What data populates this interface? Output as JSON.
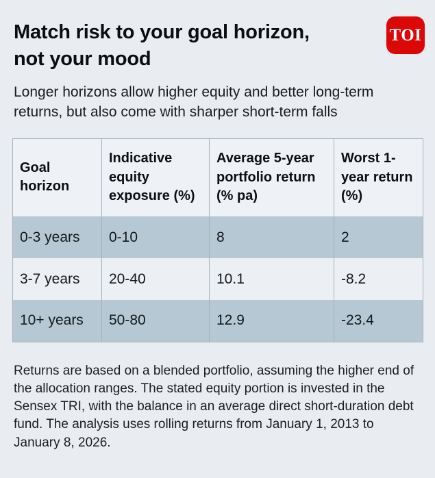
{
  "brand": {
    "logo_text": "TOI",
    "logo_bg": "#dc0707",
    "logo_fg": "#ffffff"
  },
  "header": {
    "title": "Match risk to your goal horizon, not your mood"
  },
  "subtitle": "Longer horizons allow higher equity and better long-term returns, but also come with sharper short-term falls",
  "chart_data": {
    "type": "table",
    "columns": [
      "Goal horizon",
      "Indicative equity exposure (%)",
      "Average 5-year portfolio return (% pa)",
      "Worst 1-year return (%)"
    ],
    "rows": [
      [
        "0-3 years",
        "0-10",
        "8",
        "2"
      ],
      [
        "3-7 years",
        "20-40",
        "10.1",
        "-8.2"
      ],
      [
        "10+ years",
        "50-80",
        "12.9",
        "-23.4"
      ]
    ],
    "row_highlight_pattern": [
      "shade",
      "light",
      "shade"
    ]
  },
  "footnote": "Returns are based on a blended portfolio, assuming the higher end of the allocation ranges. The stated equity portion is invested in the Sensex TRI, with the balance in an average direct short-duration debt fund. The analysis uses rolling returns from January 1, 2013 to January 8, 2026.",
  "colors": {
    "page_bg": "#e9ecf1",
    "header_row_bg": "#eef1f5",
    "row_highlight": "#b6c8d3",
    "row_light": "#ecf0f4",
    "border": "#a7b1b9",
    "logo_red": "#dc0707"
  }
}
